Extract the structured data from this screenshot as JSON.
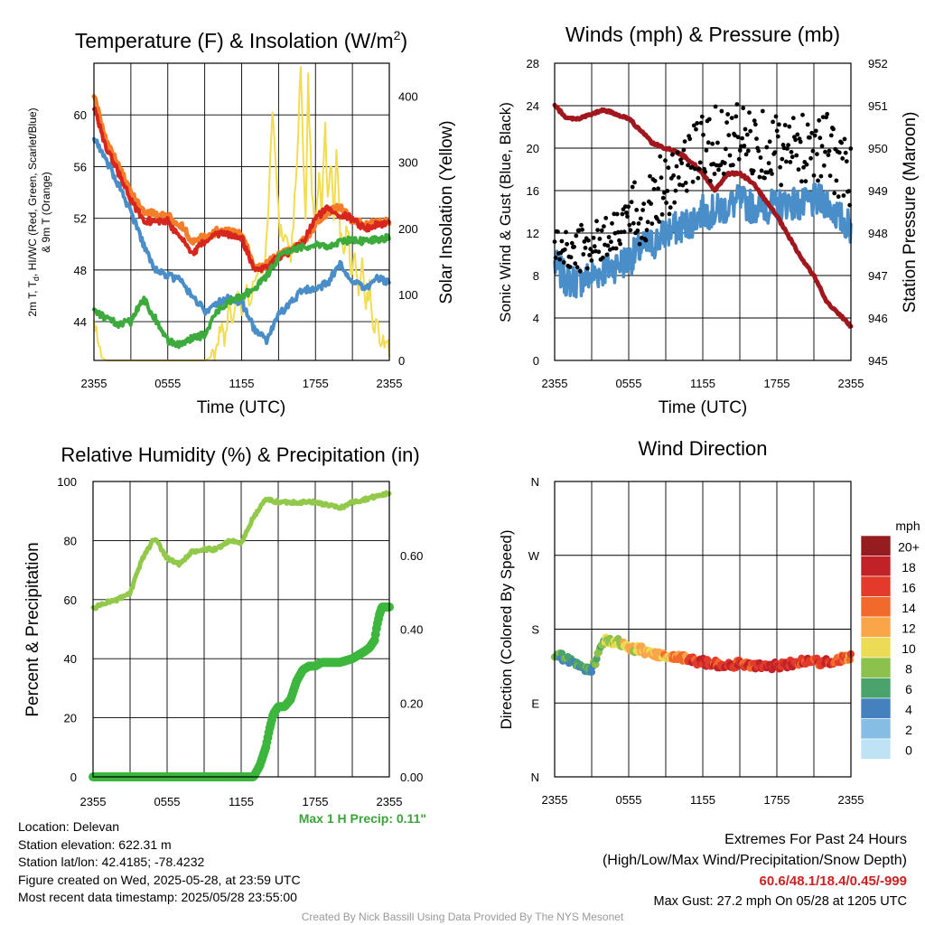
{
  "colors": {
    "red": "#d7261e",
    "orange": "#f47d2a",
    "green": "#3daa3d",
    "blue": "#4a8ec9",
    "yellow": "#f2dc50",
    "black": "#000000",
    "maroon": "#a0181e",
    "rh_green": "#93c94a",
    "precip_green": "#3db63d",
    "footer_red": "#cc2222",
    "credit_gray": "#999999"
  },
  "x_ticks": [
    "2355",
    "0555",
    "1155",
    "1755",
    "2355"
  ],
  "chart_data": [
    {
      "type": "line",
      "title": "Temperature (F) & Insolation (W/m²)",
      "xlabel": "Time (UTC)",
      "ylabel_lines": [
        "2m T, Td, HI/WC (Red, Green, Scarlet/Blue)",
        "& 9m T (Orange)"
      ],
      "y2label": "Solar Insolation (Yellow)",
      "ylim": [
        41,
        64
      ],
      "y_ticks": [
        "44",
        "48",
        "52",
        "56",
        "60"
      ],
      "y2lim": [
        0,
        450
      ],
      "y2_ticks": [
        "0",
        "100",
        "200",
        "300",
        "400"
      ],
      "x_hours": [
        0,
        1,
        2,
        3,
        4,
        5,
        6,
        7,
        8,
        9,
        10,
        11,
        12,
        13,
        14,
        15,
        16,
        17,
        18,
        19,
        20,
        21,
        22,
        23,
        24
      ],
      "series": [
        {
          "key": "orange",
          "values": [
            61.5,
            58.0,
            56.0,
            54.0,
            52.5,
            52.3,
            52.2,
            51.5,
            50.3,
            50.5,
            51.0,
            51.0,
            50.8,
            48.3,
            48.4,
            49.2,
            49.5,
            50.2,
            51.5,
            52.5,
            53.0,
            51.8,
            51.6,
            51.6,
            51.8
          ]
        },
        {
          "key": "red",
          "values": [
            60.5,
            57.5,
            55.5,
            53.5,
            51.8,
            51.8,
            51.8,
            50.5,
            49.3,
            50.2,
            50.7,
            50.8,
            50.5,
            48.1,
            48.2,
            49.0,
            49.4,
            50.1,
            52.0,
            52.8,
            52.3,
            52.0,
            51.2,
            51.5,
            51.7
          ]
        },
        {
          "key": "blue",
          "values": [
            58.2,
            56.5,
            54.5,
            52.5,
            50.0,
            48.0,
            47.6,
            47.2,
            46.0,
            44.8,
            45.5,
            45.8,
            45.5,
            43.5,
            42.5,
            44.5,
            45.5,
            46.5,
            46.5,
            47.0,
            48.5,
            47.2,
            46.5,
            47.4,
            47.0
          ]
        },
        {
          "key": "green",
          "values": [
            45.0,
            44.2,
            43.8,
            44.0,
            45.8,
            44.2,
            42.5,
            42.2,
            42.7,
            43.0,
            44.8,
            45.5,
            46.0,
            46.5,
            47.5,
            49.0,
            49.5,
            49.8,
            50.0,
            49.8,
            50.2,
            50.3,
            50.2,
            50.4,
            50.5
          ]
        }
      ],
      "insolation": {
        "key": "yellow",
        "points": [
          [
            0.0,
            55
          ],
          [
            0.3,
            35
          ],
          [
            0.6,
            5
          ],
          [
            1.0,
            0
          ],
          [
            9.0,
            0
          ],
          [
            9.5,
            5
          ],
          [
            10.0,
            15
          ],
          [
            10.3,
            55
          ],
          [
            10.7,
            30
          ],
          [
            11.0,
            80
          ],
          [
            11.3,
            55
          ],
          [
            11.7,
            110
          ],
          [
            12.0,
            70
          ],
          [
            12.3,
            110
          ],
          [
            12.6,
            90
          ],
          [
            13.0,
            120
          ],
          [
            13.4,
            150
          ],
          [
            13.8,
            140
          ],
          [
            14.0,
            170
          ],
          [
            14.2,
            230
          ],
          [
            14.5,
            390
          ],
          [
            14.8,
            300
          ],
          [
            15.1,
            200
          ],
          [
            15.4,
            180
          ],
          [
            15.7,
            200
          ],
          [
            16.0,
            160
          ],
          [
            16.3,
            240
          ],
          [
            16.6,
            340
          ],
          [
            16.8,
            450
          ],
          [
            17.0,
            300
          ],
          [
            17.2,
            200
          ],
          [
            17.4,
            430
          ],
          [
            17.7,
            250
          ],
          [
            18.0,
            200
          ],
          [
            18.3,
            280
          ],
          [
            18.5,
            220
          ],
          [
            18.8,
            350
          ],
          [
            19.0,
            250
          ],
          [
            19.3,
            300
          ],
          [
            19.5,
            210
          ],
          [
            19.7,
            320
          ],
          [
            20.0,
            200
          ],
          [
            20.3,
            160
          ],
          [
            20.6,
            210
          ],
          [
            20.9,
            130
          ],
          [
            21.2,
            170
          ],
          [
            21.5,
            100
          ],
          [
            21.8,
            150
          ],
          [
            22.1,
            80
          ],
          [
            22.4,
            110
          ],
          [
            22.7,
            40
          ],
          [
            23.0,
            60
          ],
          [
            23.3,
            30
          ],
          [
            23.6,
            25
          ],
          [
            24.0,
            20
          ]
        ]
      }
    },
    {
      "type": "line",
      "title": "Winds (mph) & Pressure (mb)",
      "xlabel": "Time (UTC)",
      "ylabel": "Sonic Wind & Gust (Blue, Black)",
      "y2label": "Station Pressure (Maroon)",
      "ylim": [
        0,
        28
      ],
      "y_ticks": [
        "0",
        "4",
        "8",
        "12",
        "16",
        "20",
        "24",
        "28"
      ],
      "y2lim": [
        945,
        952
      ],
      "y2_ticks": [
        "945",
        "946",
        "947",
        "948",
        "949",
        "950",
        "951",
        "952"
      ],
      "wind_hours": [
        0,
        1,
        2,
        3,
        4,
        5,
        6,
        7,
        8,
        9,
        10,
        11,
        12,
        13,
        14,
        15,
        16,
        17,
        18,
        19,
        20,
        21,
        22,
        23,
        24
      ],
      "wind": {
        "key": "blue",
        "values": [
          9.0,
          7.5,
          7.5,
          8.0,
          8.5,
          9.0,
          9.5,
          10.5,
          11.0,
          12.0,
          12.5,
          13.0,
          14.0,
          14.0,
          14.5,
          15.0,
          14.5,
          14.5,
          14.5,
          15.0,
          14.5,
          15.0,
          15.0,
          13.5,
          12.5
        ]
      },
      "gust_mean": {
        "values": [
          11.0,
          10.0,
          10.5,
          11.0,
          11.5,
          12.5,
          13.0,
          14.0,
          15.5,
          17.0,
          17.5,
          19.0,
          20.0,
          20.5,
          21.0,
          21.0,
          20.5,
          20.5,
          20.0,
          19.5,
          20.0,
          20.5,
          20.0,
          18.5,
          17.0
        ]
      },
      "pressure": {
        "key": "maroon",
        "values": [
          951.0,
          950.7,
          950.7,
          950.8,
          950.9,
          950.8,
          950.7,
          950.4,
          950.1,
          950.0,
          949.9,
          949.7,
          949.4,
          949.0,
          949.4,
          949.4,
          949.2,
          948.8,
          948.4,
          947.9,
          947.4,
          947.0,
          946.4,
          946.1,
          945.8
        ]
      }
    },
    {
      "type": "line",
      "title": "Relative Humidity (%) & Precipitation (in)",
      "ylabel": "Percent & Precipitation",
      "ylim": [
        0,
        100
      ],
      "y_ticks": [
        "0",
        "20",
        "40",
        "60",
        "80",
        "100"
      ],
      "y2lim": [
        0,
        0.8
      ],
      "y2_ticks": [
        "0.00",
        "0.20",
        "0.40",
        "0.60"
      ],
      "rh_hours": [
        0,
        1,
        2,
        3,
        4,
        5,
        6,
        7,
        8,
        9,
        10,
        11,
        12,
        13,
        14,
        15,
        16,
        17,
        18,
        19,
        20,
        21,
        22,
        23,
        24
      ],
      "rh": {
        "key": "rh_green",
        "values": [
          57,
          59,
          60,
          62,
          74,
          81,
          74,
          72,
          76,
          77,
          77,
          80,
          79,
          88,
          94,
          93,
          93,
          93,
          93,
          92,
          91,
          93,
          94,
          95,
          96
        ]
      },
      "precip": {
        "key": "precip_green",
        "points": [
          [
            0.0,
            0.0
          ],
          [
            13.0,
            0.0
          ],
          [
            13.5,
            0.03
          ],
          [
            14.0,
            0.08
          ],
          [
            14.3,
            0.13
          ],
          [
            14.6,
            0.17
          ],
          [
            15.0,
            0.19
          ],
          [
            15.5,
            0.19
          ],
          [
            16.0,
            0.21
          ],
          [
            16.5,
            0.26
          ],
          [
            17.0,
            0.29
          ],
          [
            17.5,
            0.3
          ],
          [
            18.0,
            0.3
          ],
          [
            18.5,
            0.31
          ],
          [
            19.0,
            0.31
          ],
          [
            20.0,
            0.31
          ],
          [
            21.0,
            0.32
          ],
          [
            21.5,
            0.33
          ],
          [
            22.0,
            0.34
          ],
          [
            22.4,
            0.35
          ],
          [
            22.8,
            0.37
          ],
          [
            23.0,
            0.41
          ],
          [
            23.2,
            0.44
          ],
          [
            23.4,
            0.46
          ],
          [
            24.0,
            0.46
          ]
        ]
      },
      "annotation": "Max 1 H Precip: 0.11\""
    },
    {
      "type": "scatter",
      "title": "Wind Direction",
      "ylabel": "Direction (Colored By Speed)",
      "y_ticks": [
        "N",
        "E",
        "S",
        "W",
        "N"
      ],
      "direction_hours": [
        0,
        1,
        2,
        3,
        4,
        5,
        6,
        7,
        8,
        9,
        10,
        11,
        12,
        13,
        14,
        15,
        16,
        17,
        18,
        19,
        20,
        21,
        22,
        23,
        24
      ],
      "direction_deg": [
        150,
        143,
        135,
        130,
        166,
        165,
        157,
        155,
        148,
        148,
        146,
        142,
        140,
        138,
        135,
        138,
        136,
        136,
        135,
        138,
        140,
        140,
        140,
        143,
        147
      ],
      "speed_mph": [
        7,
        7,
        7,
        7,
        9,
        10,
        11,
        12,
        12,
        13,
        14,
        16,
        17,
        17,
        18,
        17,
        17,
        18,
        18,
        18,
        17,
        17,
        17,
        16,
        15
      ],
      "legend": {
        "unit": "mph",
        "labels": [
          "20+",
          "18",
          "16",
          "14",
          "12",
          "10",
          "8",
          "6",
          "4",
          "2",
          "0"
        ],
        "colors": [
          "#951d1f",
          "#c12228",
          "#e23a2b",
          "#f26a2b",
          "#f9a64a",
          "#ebdb55",
          "#8cc14b",
          "#4aa36b",
          "#4581be",
          "#86bde4",
          "#bfe3f5"
        ]
      }
    }
  ],
  "info": {
    "location": "Location: Delevan",
    "elevation": "Station elevation: 622.31 m",
    "latlon": "Station lat/lon: 42.4185; -78.4232",
    "created": "Figure created on Wed, 2025-05-28, at 23:59 UTC",
    "recent": "Most recent data timestamp: 2025/05/28 23:55:00"
  },
  "extremes": {
    "title": "Extremes For Past 24 Hours",
    "subtitle": "(High/Low/Max Wind/Precipitation/Snow Depth)",
    "values": "60.6/48.1/18.4/0.45/-999",
    "max_gust": "Max Gust: 27.2 mph On 05/28 at 1205 UTC"
  },
  "credit": "Created By Nick Bassill Using Data Provided By The NYS Mesonet"
}
